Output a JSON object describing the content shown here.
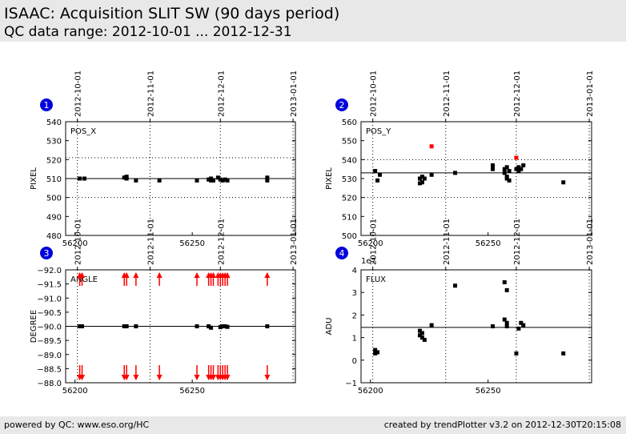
{
  "header": {
    "title": "ISAAC: Acquisition SLIT SW (90 days period)",
    "subtitle": "QC data range: 2012-10-01 ... 2012-12-31"
  },
  "footer": {
    "left": "powered by QC: www.eso.org/HC",
    "right": "created by trendPlotter v3.2 on 2012-12-30T20:15:08"
  },
  "colors": {
    "normal": "#000000",
    "outlier": "#ff0000",
    "badge": "#0000dd"
  },
  "chart_data": [
    {
      "panel": "1",
      "type": "scatter",
      "label": "POS_X",
      "ylabel": "PIXEL",
      "xlim": [
        56196,
        56294
      ],
      "ylim": [
        480,
        540
      ],
      "yticks": [
        480,
        490,
        500,
        510,
        520,
        530,
        540
      ],
      "xticks": [
        56200,
        56250
      ],
      "date_ticks": [
        "2012-10-01",
        "2012-11-01",
        "2012-12-01",
        "2013-01-01"
      ],
      "date_tick_mjd": [
        56201,
        56232,
        56262,
        56293
      ],
      "ref_line": 510,
      "dotted_lines": [
        500,
        521
      ],
      "points": [
        [
          56202,
          510
        ],
        [
          56204,
          510
        ],
        [
          56221,
          510.5
        ],
        [
          56222,
          511
        ],
        [
          56222,
          510
        ],
        [
          56226,
          509
        ],
        [
          56236,
          509
        ],
        [
          56252,
          509
        ],
        [
          56257,
          509.5
        ],
        [
          56258,
          509
        ],
        [
          56258,
          510
        ],
        [
          56259,
          509
        ],
        [
          56261,
          510.5
        ],
        [
          56262,
          509.5
        ],
        [
          56263,
          509
        ],
        [
          56264,
          509.5
        ],
        [
          56265,
          509
        ],
        [
          56282,
          509
        ],
        [
          56282,
          510.5
        ]
      ],
      "outliers": []
    },
    {
      "panel": "2",
      "type": "scatter",
      "label": "POS_Y",
      "ylabel": "PIXEL",
      "xlim": [
        56196,
        56294
      ],
      "ylim": [
        500,
        560
      ],
      "yticks": [
        500,
        510,
        520,
        530,
        540,
        550,
        560
      ],
      "xticks": [
        56200,
        56250
      ],
      "date_ticks": [
        "2012-10-01",
        "2012-11-01",
        "2012-12-01",
        "2013-01-01"
      ],
      "date_tick_mjd": [
        56201,
        56232,
        56262,
        56293
      ],
      "ref_line": 533,
      "dotted_lines": [
        520,
        540
      ],
      "points": [
        [
          56202,
          534
        ],
        [
          56203,
          529
        ],
        [
          56204,
          532
        ],
        [
          56221,
          530
        ],
        [
          56221,
          527.5
        ],
        [
          56222,
          531
        ],
        [
          56222,
          528
        ],
        [
          56223,
          530
        ],
        [
          56226,
          532
        ],
        [
          56236,
          533
        ],
        [
          56252,
          537
        ],
        [
          56252,
          535
        ],
        [
          56257,
          535
        ],
        [
          56257,
          533
        ],
        [
          56258,
          531
        ],
        [
          56258,
          530
        ],
        [
          56258,
          536
        ],
        [
          56259,
          529
        ],
        [
          56259,
          534
        ],
        [
          56262,
          535
        ],
        [
          56263,
          534
        ],
        [
          56263,
          536
        ],
        [
          56264,
          535
        ],
        [
          56265,
          537
        ],
        [
          56282,
          528
        ]
      ],
      "outliers": [
        [
          56226,
          547
        ],
        [
          56262,
          541
        ]
      ]
    },
    {
      "panel": "3",
      "type": "scatter",
      "label": "ANGLE",
      "ylabel": "DEGREE",
      "xlim": [
        56196,
        56294
      ],
      "ylim": [
        -92.0,
        -88.0
      ],
      "inverted": true,
      "yticks": [
        -92.0,
        -91.5,
        -91.0,
        -90.5,
        -90.0,
        -89.5,
        -89.0,
        -88.5,
        -88.0
      ],
      "xticks": [
        56200,
        56250
      ],
      "date_ticks": [
        "2012-10-01",
        "2012-11-01",
        "2012-12-01",
        "2013-01-01"
      ],
      "date_tick_mjd": [
        56201,
        56232,
        56262,
        56293
      ],
      "ref_line": -90.0,
      "dotted_lines": [],
      "points": [
        [
          56202,
          -90.0
        ],
        [
          56203,
          -90.0
        ],
        [
          56221,
          -90.0
        ],
        [
          56222,
          -90.0
        ],
        [
          56226,
          -90.0
        ],
        [
          56252,
          -90.0
        ],
        [
          56257,
          -90.0
        ],
        [
          56258,
          -89.95
        ],
        [
          56262,
          -89.97
        ],
        [
          56263,
          -90.0
        ],
        [
          56264,
          -90.0
        ],
        [
          56265,
          -89.98
        ],
        [
          56282,
          -90.0
        ]
      ],
      "outliers": [
        [
          56202,
          -91.6
        ],
        [
          56203,
          -91.6
        ],
        [
          56221,
          -91.6
        ],
        [
          56222,
          -91.6
        ],
        [
          56226,
          -91.6
        ],
        [
          56236,
          -91.6
        ],
        [
          56252,
          -91.6
        ],
        [
          56257,
          -91.6
        ],
        [
          56258,
          -91.6
        ],
        [
          56259,
          -91.6
        ],
        [
          56261,
          -91.6
        ],
        [
          56262,
          -91.6
        ],
        [
          56263,
          -91.6
        ],
        [
          56264,
          -91.6
        ],
        [
          56265,
          -91.6
        ],
        [
          56282,
          -91.6
        ]
      ]
    },
    {
      "panel": "4",
      "type": "scatter",
      "label": "FLUX",
      "ylabel": "ADU",
      "xlim": [
        56196,
        56294
      ],
      "ylim": [
        -1,
        4
      ],
      "y_multiplier": "1e7",
      "yticks": [
        -1,
        0,
        1,
        2,
        3,
        4
      ],
      "xticks": [
        56200,
        56250
      ],
      "date_ticks": [
        "2012-10-01",
        "2012-11-01",
        "2012-12-01",
        "2013-01-01"
      ],
      "date_tick_mjd": [
        56201,
        56232,
        56262,
        56293
      ],
      "ref_line": 1.45,
      "dotted_lines": [],
      "points": [
        [
          56202,
          0.45
        ],
        [
          56202,
          0.3
        ],
        [
          56203,
          0.35
        ],
        [
          56221,
          1.3
        ],
        [
          56221,
          1.1
        ],
        [
          56222,
          1.2
        ],
        [
          56222,
          1.0
        ],
        [
          56223,
          0.9
        ],
        [
          56226,
          1.55
        ],
        [
          56236,
          3.3
        ],
        [
          56252,
          1.5
        ],
        [
          56257,
          3.45
        ],
        [
          56257,
          1.8
        ],
        [
          56258,
          3.1
        ],
        [
          56258,
          1.65
        ],
        [
          56258,
          1.5
        ],
        [
          56262,
          0.3
        ],
        [
          56263,
          1.4
        ],
        [
          56264,
          1.65
        ],
        [
          56265,
          1.55
        ],
        [
          56282,
          0.3
        ]
      ],
      "outliers": []
    }
  ]
}
